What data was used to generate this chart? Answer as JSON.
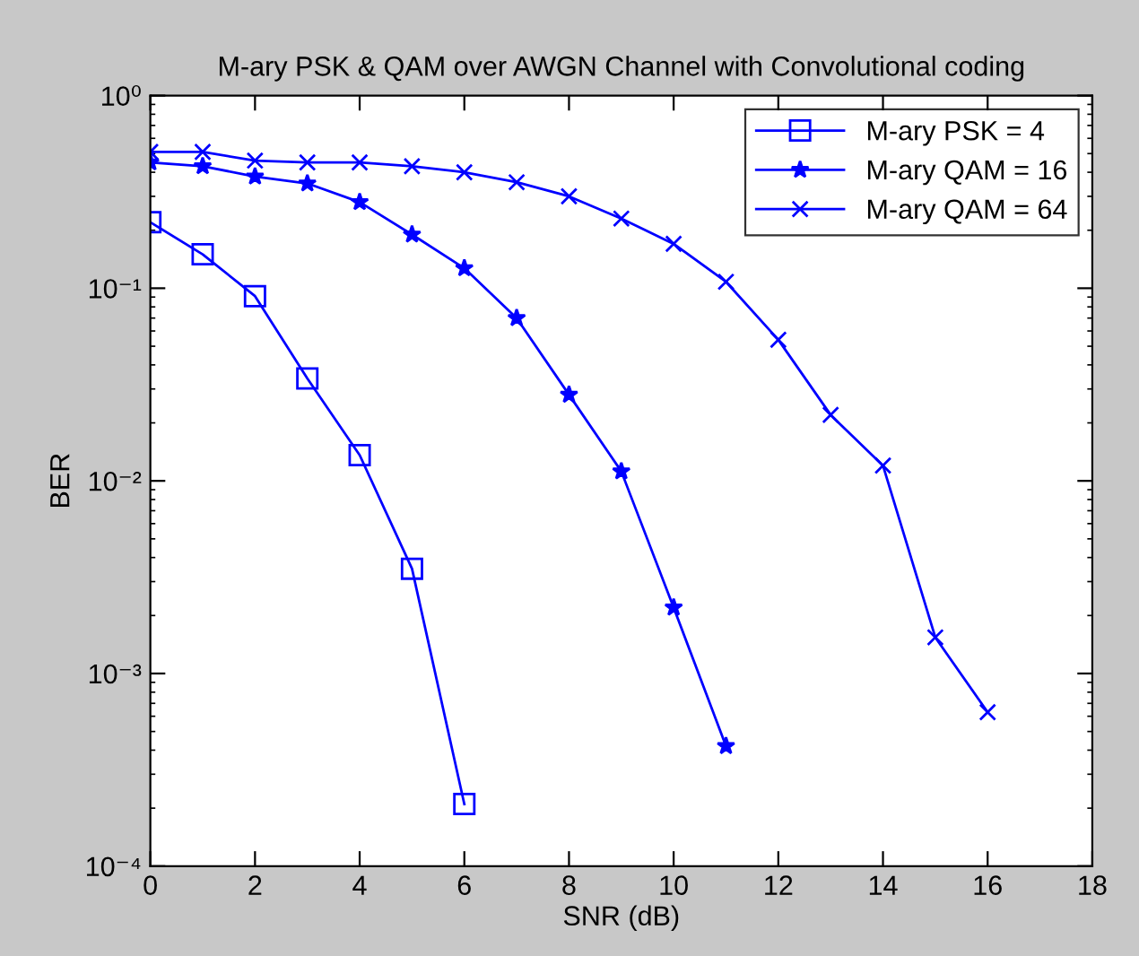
{
  "chart_data": {
    "type": "line",
    "title": "M-ary PSK & QAM over AWGN Channel with Convolutional coding",
    "xlabel": "SNR (dB)",
    "ylabel": "BER",
    "log": "y",
    "grid": false,
    "legend": "top right",
    "series": [
      {
        "name": "M-ary PSK = 4",
        "color": "#0000ff",
        "marker": "square",
        "x": [
          0,
          1,
          2,
          3,
          4,
          5,
          6
        ],
        "values": [
          0.22,
          0.15,
          0.091,
          0.034,
          0.0136,
          0.0035,
          0.00021
        ]
      },
      {
        "name": "M-ary QAM = 16",
        "color": "#0000ff",
        "marker": "star",
        "x": [
          0,
          1,
          2,
          3,
          4,
          5,
          6,
          7,
          8,
          9,
          10,
          11
        ],
        "values": [
          0.45,
          0.43,
          0.38,
          0.35,
          0.28,
          0.19,
          0.127,
          0.07,
          0.028,
          0.0112,
          0.0022,
          0.00042
        ]
      },
      {
        "name": "M-ary QAM = 64",
        "color": "#0000ff",
        "marker": "cross",
        "x": [
          0,
          1,
          2,
          3,
          4,
          5,
          6,
          7,
          8,
          9,
          10,
          11,
          12,
          13,
          14,
          15,
          16
        ],
        "values": [
          0.51,
          0.51,
          0.46,
          0.45,
          0.45,
          0.43,
          0.4,
          0.355,
          0.3,
          0.23,
          0.17,
          0.108,
          0.054,
          0.022,
          0.012,
          0.00154,
          0.00063
        ]
      }
    ],
    "xlim": [
      0,
      18
    ],
    "xticks": [
      0,
      2,
      4,
      6,
      8,
      10,
      12,
      14,
      16,
      18
    ],
    "ylim": [
      0.0001,
      1
    ],
    "yticks": [
      {
        "value": 0.0001,
        "label": "10⁻⁴"
      },
      {
        "value": 0.001,
        "label": "10⁻³"
      },
      {
        "value": 0.01,
        "label": "10⁻²"
      },
      {
        "value": 0.1,
        "label": "10⁻¹"
      },
      {
        "value": 1,
        "label": "10⁰"
      }
    ]
  }
}
